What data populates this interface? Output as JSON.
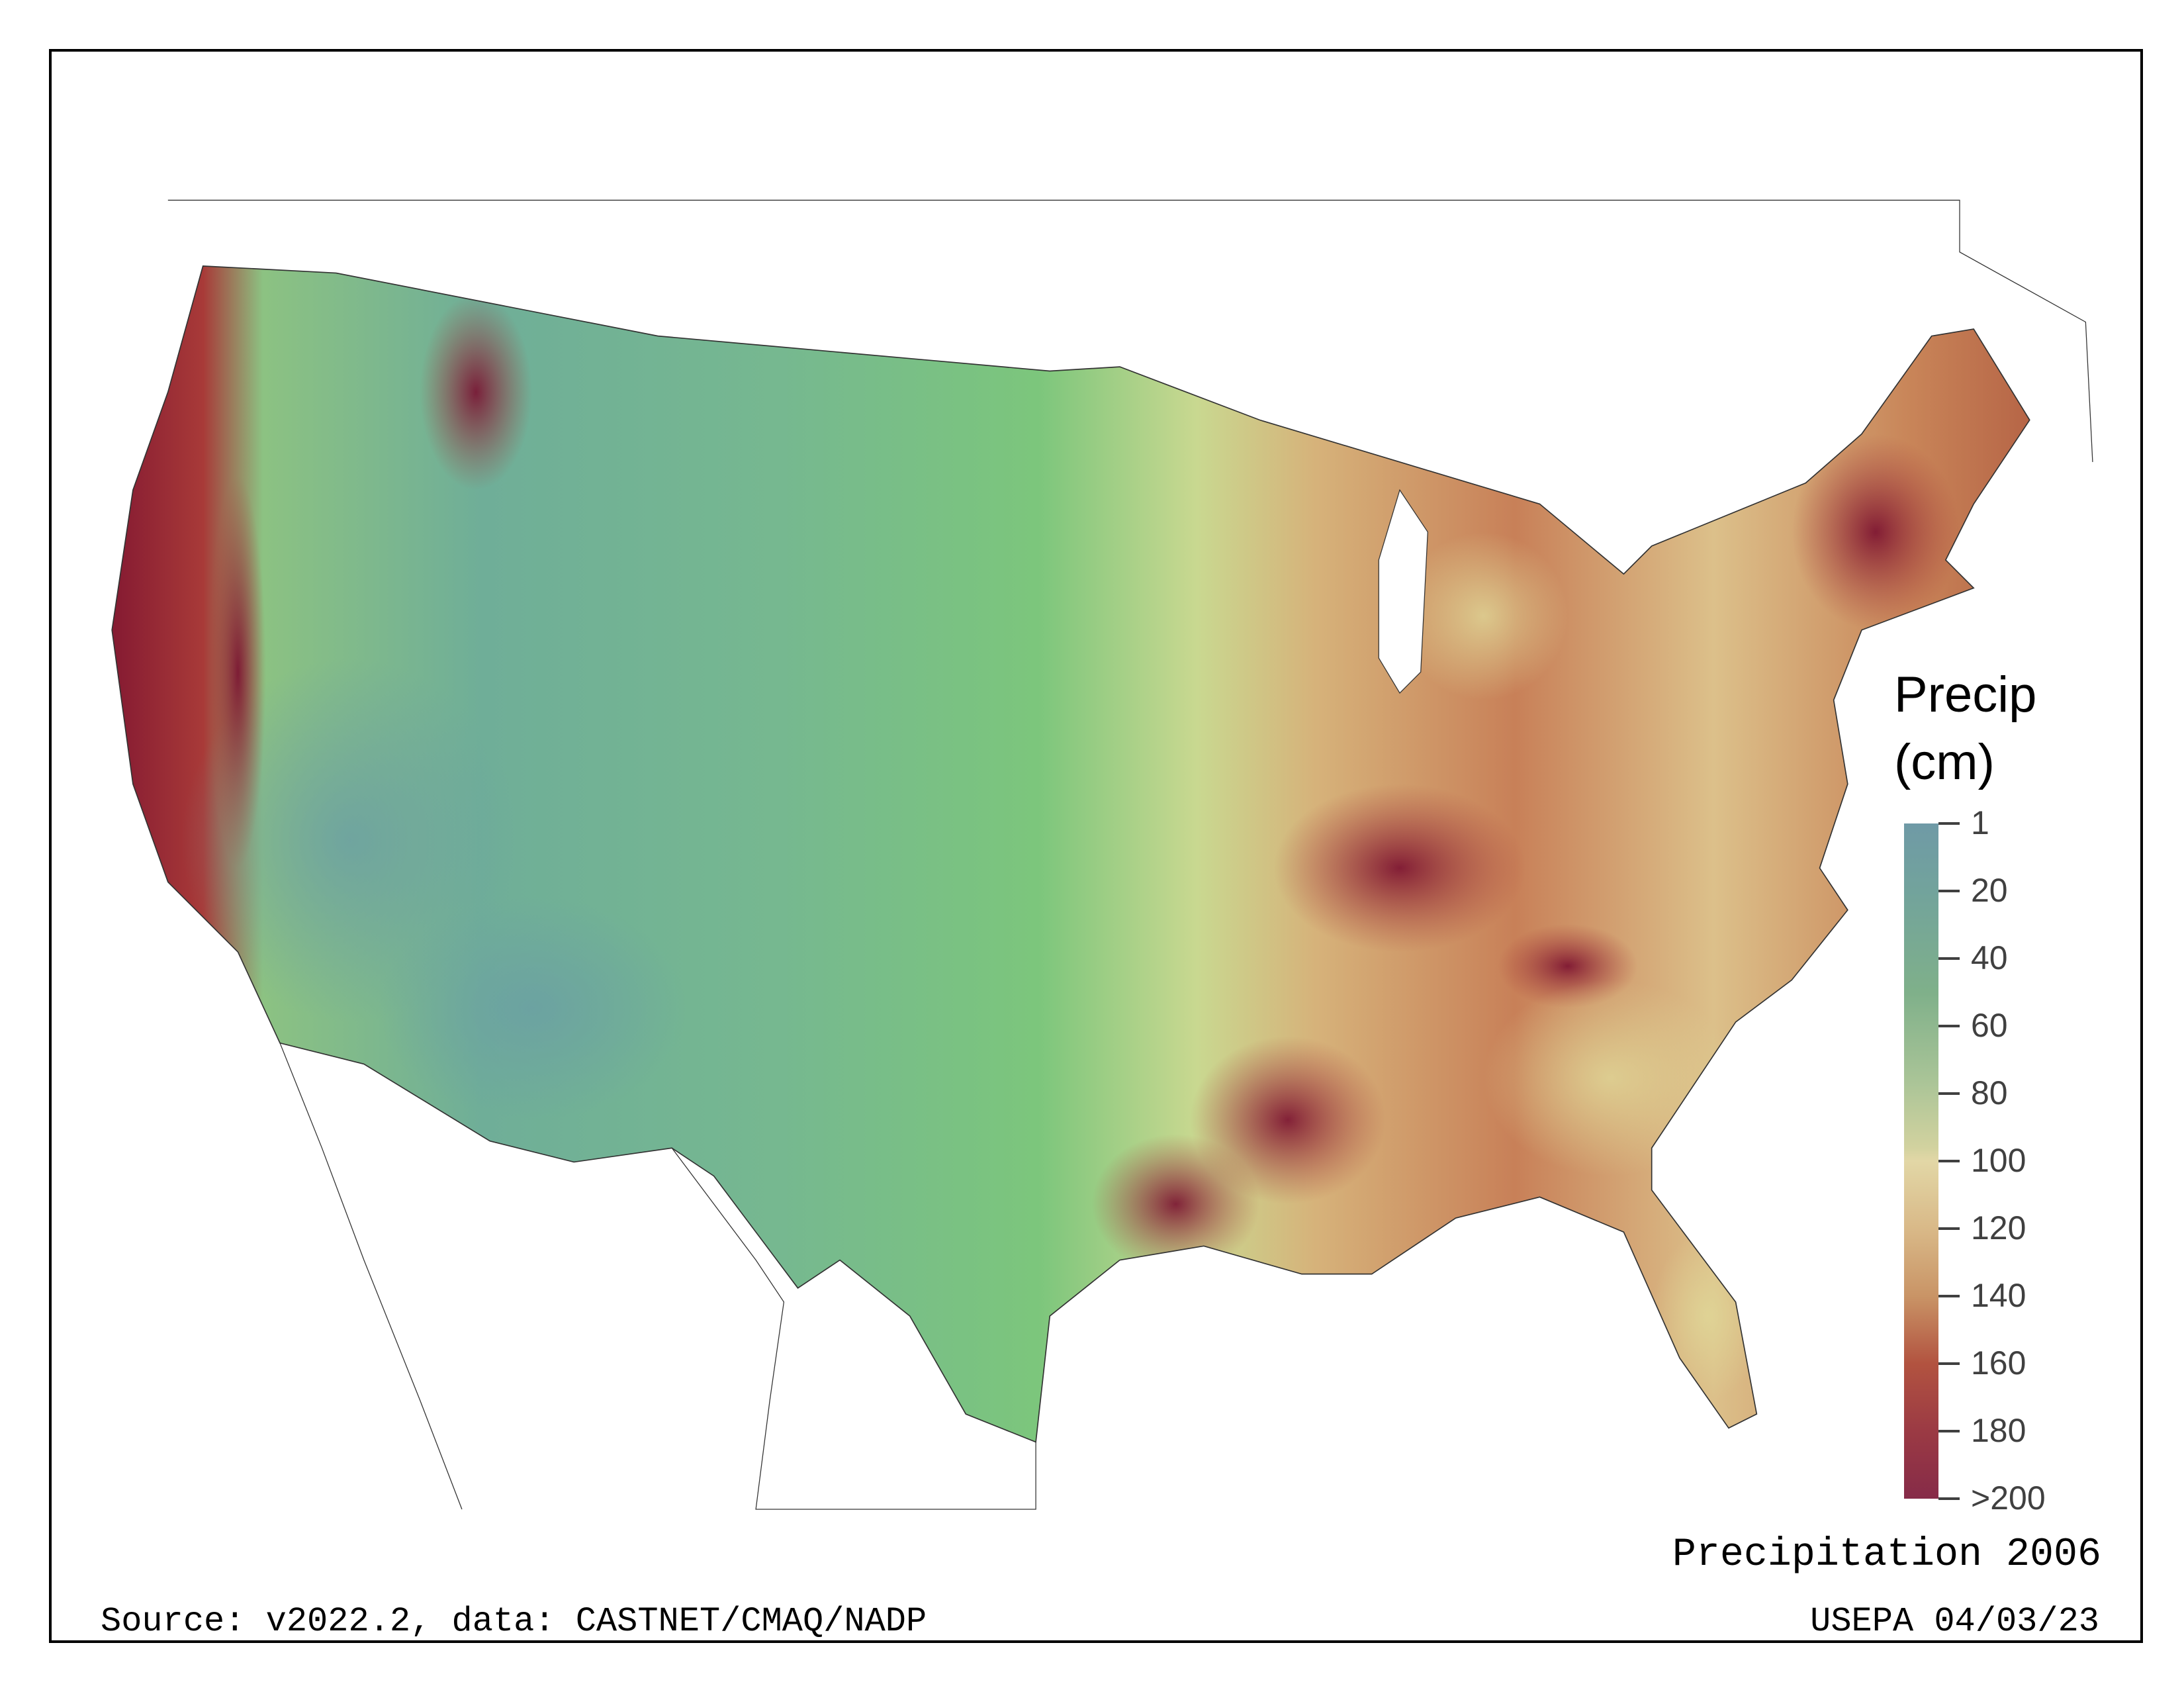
{
  "map": {
    "title": "Precipitation 2006",
    "source": "Source: v2022.2, data: CASTNET/CMAQ/NADP",
    "credit": "USEPA 04/03/23",
    "region": "Contiguous United States"
  },
  "legend": {
    "title_line1": "Precip",
    "title_line2": "(cm)",
    "ticks": [
      "1",
      "20",
      "40",
      "60",
      "80",
      "100",
      "120",
      "140",
      "160",
      "180",
      ">200"
    ],
    "colors": {
      "low": "#6f9aa6",
      "mid_low": "#7fb08a",
      "mid": "#e2d7a6",
      "mid_high": "#c99466",
      "high": "#862b48"
    }
  }
}
